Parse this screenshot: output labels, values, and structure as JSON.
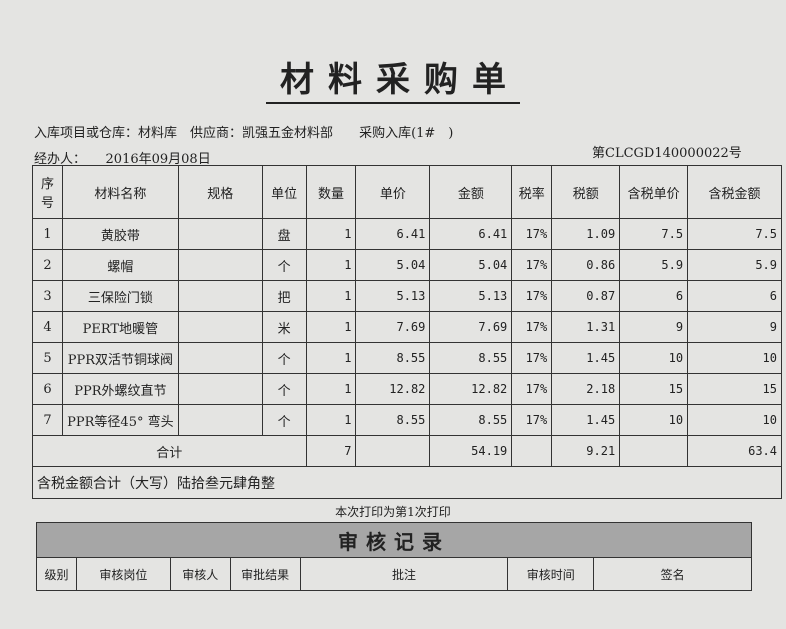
{
  "title": "材料采购单",
  "info": {
    "warehouse": "入库项目或仓库：材料库",
    "supplier": "供应商：凯强五金材料部",
    "purchase": "采购入库(1#　)",
    "handler": "经办人：",
    "date": "2016年09月08日",
    "number": "第CLCGD140000022号"
  },
  "headers": [
    "序号",
    "材料名称",
    "规格",
    "单位",
    "数量",
    "单价",
    "金额",
    "税率",
    "税额",
    "含税单价",
    "含税金额"
  ],
  "rows": [
    {
      "no": "1",
      "name": "黄胶带",
      "spec": "",
      "unit": "盘",
      "qty": "1",
      "price": "6.41",
      "amount": "6.41",
      "rate": "17%",
      "tax": "1.09",
      "tprice": "7.5",
      "tamount": "7.5"
    },
    {
      "no": "2",
      "name": "螺帽",
      "spec": "",
      "unit": "个",
      "qty": "1",
      "price": "5.04",
      "amount": "5.04",
      "rate": "17%",
      "tax": "0.86",
      "tprice": "5.9",
      "tamount": "5.9"
    },
    {
      "no": "3",
      "name": "三保险门锁",
      "spec": "",
      "unit": "把",
      "qty": "1",
      "price": "5.13",
      "amount": "5.13",
      "rate": "17%",
      "tax": "0.87",
      "tprice": "6",
      "tamount": "6"
    },
    {
      "no": "4",
      "name": "PERT地暖管",
      "spec": "",
      "unit": "米",
      "qty": "1",
      "price": "7.69",
      "amount": "7.69",
      "rate": "17%",
      "tax": "1.31",
      "tprice": "9",
      "tamount": "9"
    },
    {
      "no": "5",
      "name": "PPR双活节铜球阀",
      "spec": "",
      "unit": "个",
      "qty": "1",
      "price": "8.55",
      "amount": "8.55",
      "rate": "17%",
      "tax": "1.45",
      "tprice": "10",
      "tamount": "10"
    },
    {
      "no": "6",
      "name": "PPR外螺纹直节",
      "spec": "",
      "unit": "个",
      "qty": "1",
      "price": "12.82",
      "amount": "12.82",
      "rate": "17%",
      "tax": "2.18",
      "tprice": "15",
      "tamount": "15"
    },
    {
      "no": "7",
      "name": "PPR等径45° 弯头",
      "spec": "",
      "unit": "个",
      "qty": "1",
      "price": "8.55",
      "amount": "8.55",
      "rate": "17%",
      "tax": "1.45",
      "tprice": "10",
      "tamount": "10"
    }
  ],
  "total": {
    "label": "合计",
    "qty": "7",
    "amount": "54.19",
    "tax": "9.21",
    "tamount": "63.4"
  },
  "capital": "含税金额合计（大写）陆拾叁元肆角整",
  "print_note": "本次打印为第1次打印",
  "audit": {
    "title": "审核记录",
    "headers": [
      "级别",
      "审核岗位",
      "审核人",
      "审批结果",
      "批注",
      "审核时间",
      "签名"
    ]
  }
}
